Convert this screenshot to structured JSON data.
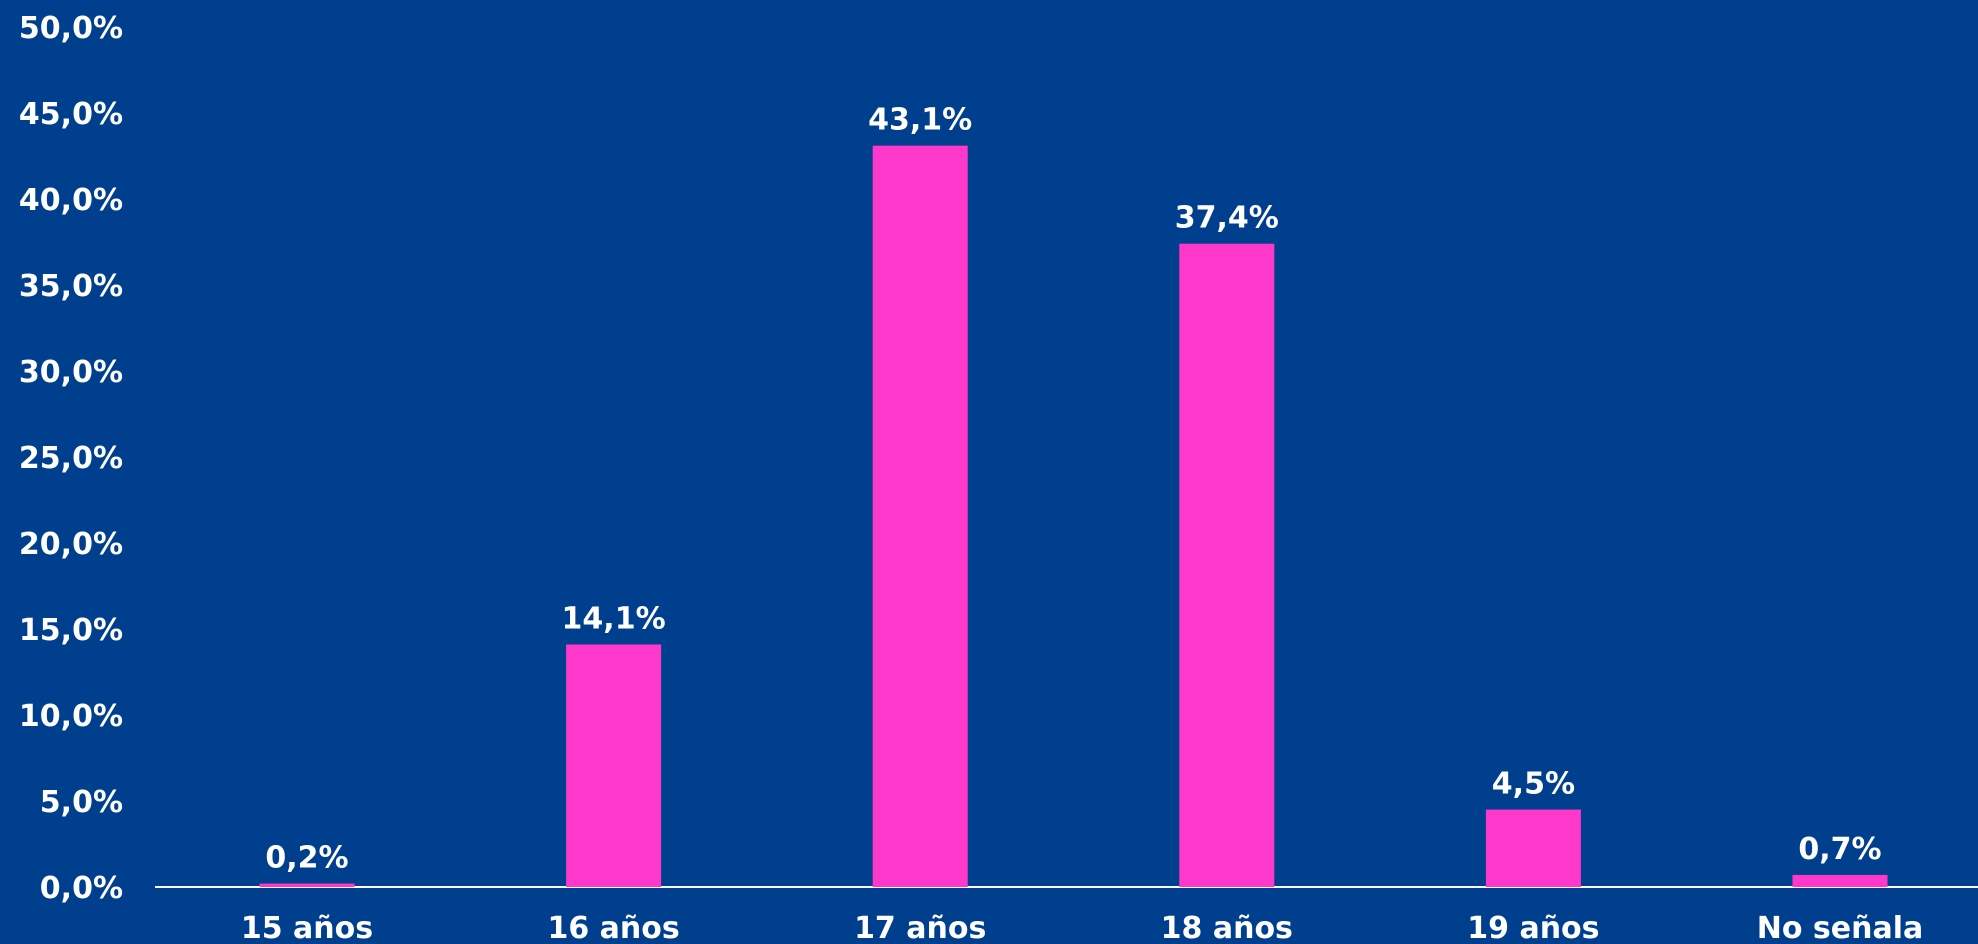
{
  "chart_data": {
    "type": "bar",
    "categories": [
      "15 años",
      "16 años",
      "17 años",
      "18 años",
      "19 años",
      "No señala"
    ],
    "values": [
      0.2,
      14.1,
      43.1,
      37.4,
      4.5,
      0.7
    ],
    "value_labels": [
      "0,2%",
      "14,1%",
      "43,1%",
      "37,4%",
      "4,5%",
      "0,7%"
    ],
    "y_ticks": [
      0,
      5,
      10,
      15,
      20,
      25,
      30,
      35,
      40,
      45,
      50
    ],
    "y_tick_labels": [
      "0,0%",
      "5,0%",
      "10,0%",
      "15,0%",
      "20,0%",
      "25,0%",
      "30,0%",
      "35,0%",
      "40,0%",
      "45,0%",
      "50,0%"
    ],
    "ylim": [
      0,
      50
    ],
    "title": "",
    "xlabel": "",
    "ylabel": "",
    "grid": false,
    "legend": "none",
    "colors": {
      "background": "#003F8E",
      "bar": "#FF38CC",
      "text": "#FFFFFF",
      "axis": "#FFFFFF"
    }
  }
}
